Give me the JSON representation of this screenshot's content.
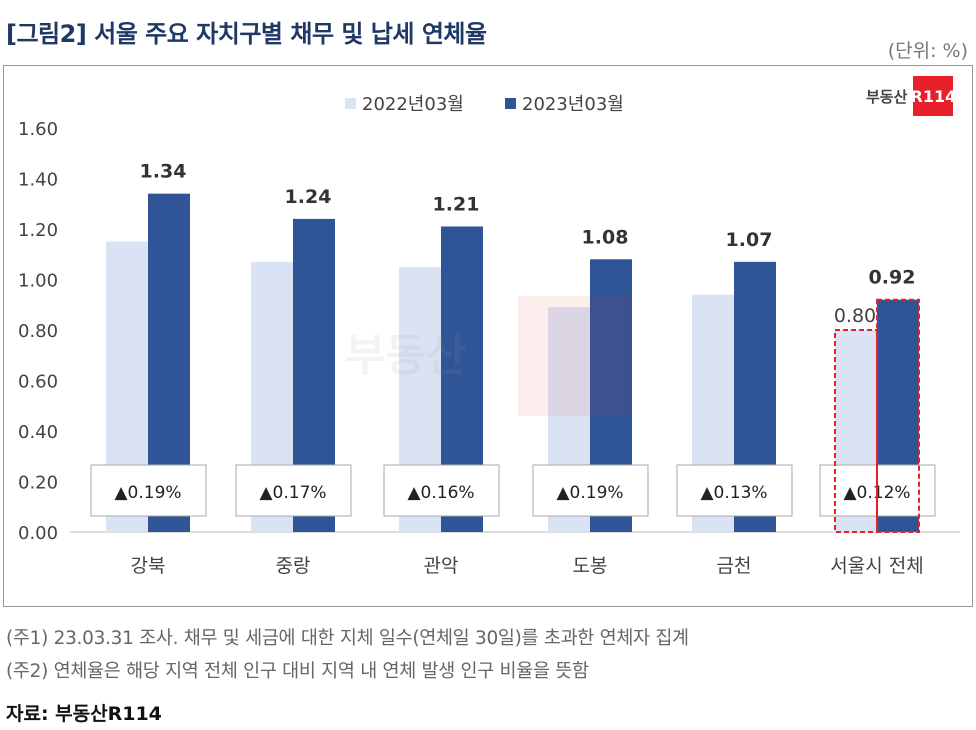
{
  "title": "[그림2] 서울 주요 자치구별 채무 및 납세 연체율",
  "unit": "(단위: %)",
  "logo": {
    "text": "부동산",
    "badge": "R114"
  },
  "notes": [
    "(주1) 23.03.31 조사. 채무 및 세금에 대한 지체 일수(연체일 30일)를 초과한 연체자 집계",
    "(주2) 연체율은 해당 지역 전체 인구 대비 지역 내 연체 발생 인구 비율을 뜻함"
  ],
  "source": "자료: 부동산R114",
  "chart_data": {
    "type": "bar",
    "categories": [
      "강북",
      "중랑",
      "관악",
      "도봉",
      "금천",
      "서울시 전체"
    ],
    "series": [
      {
        "name": "2022년03월",
        "color": "#dae3f3",
        "values": [
          1.15,
          1.07,
          1.05,
          0.89,
          0.94,
          0.8
        ]
      },
      {
        "name": "2023년03월",
        "color": "#2f5597",
        "values": [
          1.34,
          1.24,
          1.21,
          1.08,
          1.07,
          0.92
        ]
      }
    ],
    "data_labels_2023": [
      "1.34",
      "1.24",
      "1.21",
      "1.08",
      "1.07",
      "0.92"
    ],
    "data_label_2022_seoul": "0.80",
    "change_labels": [
      "▲0.19%",
      "▲0.17%",
      "▲0.16%",
      "▲0.19%",
      "▲0.13%",
      "▲0.12%"
    ],
    "highlight_category": "서울시 전체",
    "highlight_color": "#e8202a",
    "yticks": [
      "0.00",
      "0.20",
      "0.40",
      "0.60",
      "0.80",
      "1.00",
      "1.20",
      "1.40",
      "1.60"
    ],
    "ylim": [
      0,
      1.6
    ],
    "legend_position": "top",
    "grid": false
  }
}
